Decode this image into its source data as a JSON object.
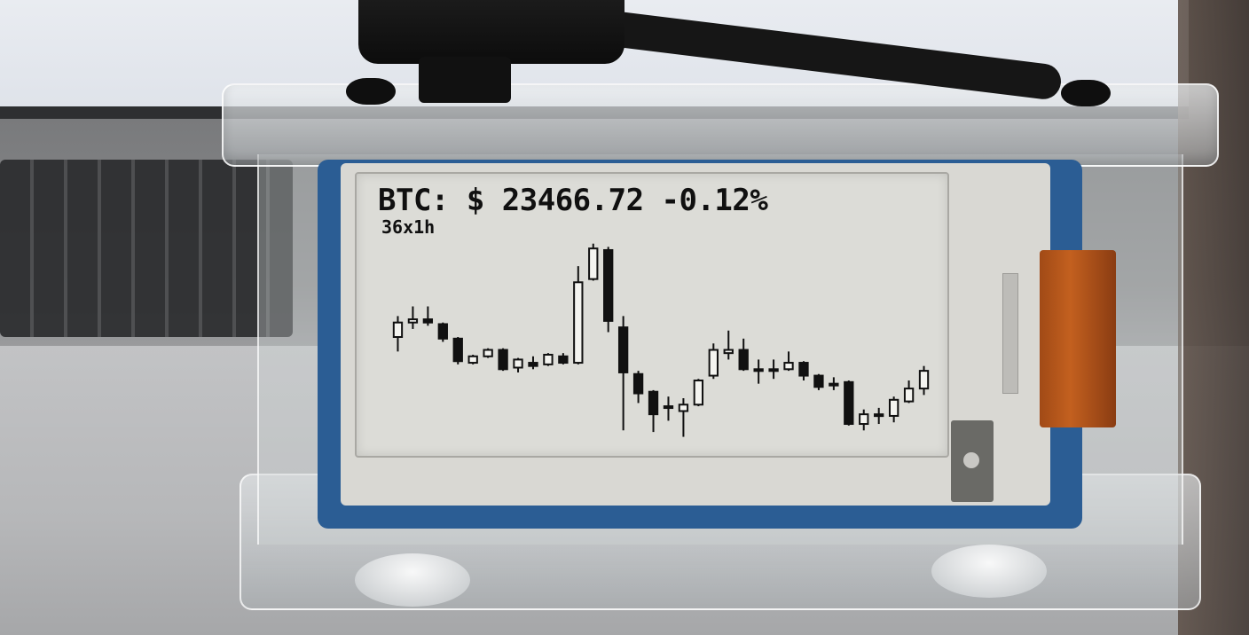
{
  "ticker": {
    "price_text": "BTC: $ 23466.72 -0.12%",
    "timeframe": "36x1h"
  },
  "chart_data": {
    "type": "candlestick",
    "candle_count": 36,
    "interval": "1h",
    "candles": [
      {
        "o": 0.2,
        "c": 0.29,
        "h": 0.33,
        "l": 0.11
      },
      {
        "o": 0.29,
        "c": 0.31,
        "h": 0.39,
        "l": 0.25
      },
      {
        "o": 0.31,
        "c": 0.29,
        "h": 0.39,
        "l": 0.27
      },
      {
        "o": 0.28,
        "c": 0.19,
        "h": 0.29,
        "l": 0.17
      },
      {
        "o": 0.19,
        "c": 0.05,
        "h": 0.2,
        "l": 0.03
      },
      {
        "o": 0.04,
        "c": 0.08,
        "h": 0.09,
        "l": 0.03
      },
      {
        "o": 0.08,
        "c": 0.12,
        "h": 0.13,
        "l": 0.07
      },
      {
        "o": 0.12,
        "c": 0.0,
        "h": 0.13,
        "l": -0.01
      },
      {
        "o": 0.01,
        "c": 0.06,
        "h": 0.07,
        "l": -0.02
      },
      {
        "o": 0.04,
        "c": 0.02,
        "h": 0.08,
        "l": 0.0
      },
      {
        "o": 0.03,
        "c": 0.09,
        "h": 0.1,
        "l": 0.02
      },
      {
        "o": 0.08,
        "c": 0.04,
        "h": 0.1,
        "l": 0.03
      },
      {
        "o": 0.04,
        "c": 0.54,
        "h": 0.64,
        "l": 0.03
      },
      {
        "o": 0.56,
        "c": 0.75,
        "h": 0.78,
        "l": 0.55
      },
      {
        "o": 0.74,
        "c": 0.3,
        "h": 0.76,
        "l": 0.23
      },
      {
        "o": 0.26,
        "c": -0.02,
        "h": 0.33,
        "l": -0.38
      },
      {
        "o": -0.03,
        "c": -0.15,
        "h": -0.01,
        "l": -0.21
      },
      {
        "o": -0.14,
        "c": -0.28,
        "h": -0.13,
        "l": -0.39
      },
      {
        "o": -0.24,
        "c": -0.23,
        "h": -0.17,
        "l": -0.32
      },
      {
        "o": -0.26,
        "c": -0.22,
        "h": -0.18,
        "l": -0.42
      },
      {
        "o": -0.22,
        "c": -0.07,
        "h": -0.06,
        "l": -0.23
      },
      {
        "o": -0.04,
        "c": 0.12,
        "h": 0.16,
        "l": -0.06
      },
      {
        "o": 0.1,
        "c": 0.12,
        "h": 0.24,
        "l": 0.06
      },
      {
        "o": 0.12,
        "c": 0.0,
        "h": 0.19,
        "l": -0.01
      },
      {
        "o": 0.0,
        "c": -0.01,
        "h": 0.06,
        "l": -0.09
      },
      {
        "o": 0.0,
        "c": 0.0,
        "h": 0.06,
        "l": -0.06
      },
      {
        "o": 0.0,
        "c": 0.04,
        "h": 0.11,
        "l": -0.01
      },
      {
        "o": 0.04,
        "c": -0.04,
        "h": 0.05,
        "l": -0.07
      },
      {
        "o": -0.04,
        "c": -0.11,
        "h": -0.03,
        "l": -0.13
      },
      {
        "o": -0.1,
        "c": -0.09,
        "h": -0.05,
        "l": -0.13
      },
      {
        "o": -0.08,
        "c": -0.34,
        "h": -0.07,
        "l": -0.35
      },
      {
        "o": -0.34,
        "c": -0.28,
        "h": -0.25,
        "l": -0.38
      },
      {
        "o": -0.29,
        "c": -0.28,
        "h": -0.24,
        "l": -0.34
      },
      {
        "o": -0.29,
        "c": -0.19,
        "h": -0.17,
        "l": -0.33
      },
      {
        "o": -0.2,
        "c": -0.12,
        "h": -0.07,
        "l": -0.21
      },
      {
        "o": -0.12,
        "c": -0.01,
        "h": 0.02,
        "l": -0.16
      }
    ],
    "ylim": [
      -0.45,
      0.85
    ],
    "up_color": "#f4f4f0",
    "down_color": "#111111"
  },
  "colors": {
    "epaper_bg": "#dcdcd7",
    "ink": "#101010",
    "pcb": "#2b5d94"
  }
}
